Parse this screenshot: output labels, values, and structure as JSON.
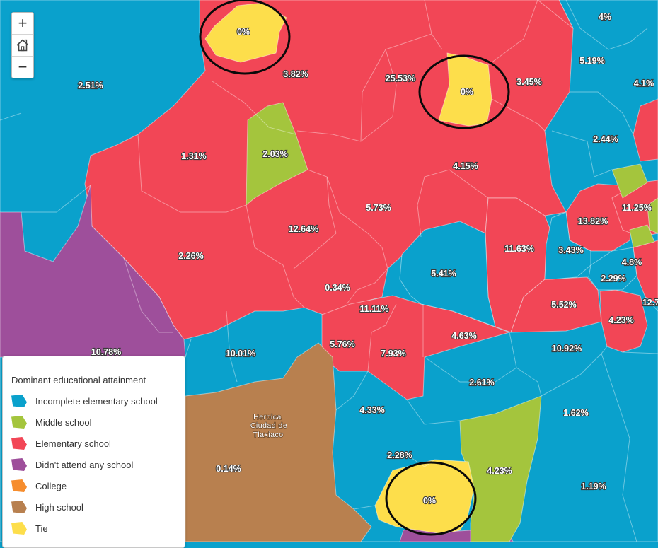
{
  "colors": {
    "incomplete_elementary": "#0aa1cc",
    "middle_school": "#a4c53d",
    "elementary": "#f24656",
    "no_school": "#9e4f9b",
    "college": "#f68d2e",
    "high_school": "#b8804f",
    "tie": "#fdde4b",
    "ring": "#0a0a0a"
  },
  "controls": {
    "zoom_in": "+",
    "zoom_out": "−",
    "home_icon": "home-icon"
  },
  "legend": {
    "title": "Dominant educational attainment",
    "items": [
      {
        "label": "Incomplete elementary school",
        "color_key": "incomplete_elementary"
      },
      {
        "label": "Middle school",
        "color_key": "middle_school"
      },
      {
        "label": "Elementary school",
        "color_key": "elementary"
      },
      {
        "label": "Didn't attend any school",
        "color_key": "no_school"
      },
      {
        "label": "College",
        "color_key": "college"
      },
      {
        "label": "High school",
        "color_key": "high_school"
      },
      {
        "label": "Tie",
        "color_key": "tie"
      }
    ]
  },
  "map": {
    "town_name": [
      "Heroica",
      "Ciudad de",
      "Tlaxiaco"
    ],
    "region_labels": [
      "0%",
      "3.82%",
      "2.51%",
      "25.53%",
      "0%",
      "3.45%",
      "4%",
      "5.19%",
      "4.1%",
      "1.31%",
      "2.03%",
      "4.15%",
      "2.44%",
      "5.73%",
      "12.64%",
      "2.26%",
      "11.63%",
      "3.43%",
      "13.82%",
      "11.25%",
      "4.8%",
      "2.29%",
      "12.7",
      "5.41%",
      "0.34%",
      "11.11%",
      "5.52%",
      "4.23%",
      "4.63%",
      "10.78%",
      "10.01%",
      "5.76%",
      "7.93%",
      "10.92%",
      "2.61%",
      "4.33%",
      "1.62%",
      "0.14%",
      "2.28%",
      "4.23%",
      "0%",
      "1.19%"
    ]
  }
}
